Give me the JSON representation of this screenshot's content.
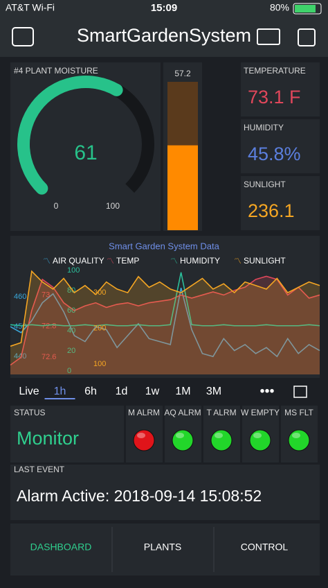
{
  "status_bar": {
    "carrier": "AT&T Wi-Fi",
    "time": "15:09",
    "battery": "80%"
  },
  "header": {
    "title": "SmartGardenSystem"
  },
  "gauge": {
    "label": "#4 PLANT MOISTURE",
    "value": 61,
    "min": 0,
    "max": 100,
    "color": "#27c28a"
  },
  "level": {
    "value": 57.2,
    "color": "#ff8a00"
  },
  "displays": [
    {
      "label": "TEMPERATURE",
      "value": "73.1 F",
      "color": "#e0475b"
    },
    {
      "label": "HUMIDITY",
      "value": "45.8%",
      "color": "#5b7fde"
    },
    {
      "label": "SUNLIGHT",
      "value": "236.1",
      "color": "#f5a623"
    }
  ],
  "chart_data": {
    "type": "line",
    "title": "Smart Garden System Data",
    "series": [
      {
        "name": "AIR QUALITY",
        "color": "#3aa7d9",
        "ylim": [
          434,
          470
        ],
        "yticks": [
          460,
          450,
          440
        ],
        "values": [
          450,
          448,
          452,
          458,
          461,
          455,
          447,
          445,
          450,
          449,
          443,
          447,
          451,
          446,
          445,
          444,
          463,
          449,
          441,
          440,
          446,
          442,
          444,
          441,
          443,
          440,
          446,
          441,
          444,
          442
        ]
      },
      {
        "name": "TEMP",
        "color": "#e0475b",
        "area": true,
        "ylim": [
          72.49,
          73.18
        ],
        "yticks": [
          73,
          72.8,
          72.6
        ],
        "values": [
          72.55,
          72.6,
          72.9,
          73.1,
          73.05,
          72.95,
          72.9,
          72.93,
          72.95,
          72.92,
          72.94,
          72.95,
          72.93,
          72.95,
          72.96,
          72.97,
          73.0,
          72.98,
          73.0,
          73.02,
          73.0,
          73.03,
          73.05,
          73.1,
          73.12,
          73.1,
          73.0,
          73.05,
          72.98,
          73.0
        ]
      },
      {
        "name": "HUMIDITY",
        "color": "#2bbf9b",
        "ylim": [
          -3.4,
          103.4
        ],
        "yticks": [
          100,
          80,
          60,
          40,
          20,
          0
        ],
        "values": [
          46,
          45,
          46,
          45,
          46,
          45,
          45,
          46,
          45,
          46,
          45,
          45,
          46,
          45,
          45,
          46,
          98,
          46,
          45,
          45,
          46,
          45,
          45,
          45,
          46,
          45,
          45,
          45,
          46,
          45
        ]
      },
      {
        "name": "SUNLIGHT",
        "color": "#f5a623",
        "area": true,
        "ylim": [
          71,
          372
        ],
        "yticks": [
          300,
          200,
          100
        ],
        "values": [
          150,
          160,
          360,
          330,
          310,
          340,
          300,
          320,
          295,
          330,
          310,
          300,
          345,
          315,
          330,
          310,
          300,
          320,
          340,
          310,
          325,
          300,
          330,
          320,
          310,
          340,
          300,
          315,
          330,
          320
        ]
      }
    ]
  },
  "periods": [
    "Live",
    "1h",
    "6h",
    "1d",
    "1w",
    "1M",
    "3M"
  ],
  "selected_period": 1,
  "status": {
    "label": "STATUS",
    "value": "Monitor"
  },
  "leds": [
    {
      "label": "M ALRM",
      "color": "#e0141a"
    },
    {
      "label": "AQ ALRM",
      "color": "#22d62a"
    },
    {
      "label": "T ALRM",
      "color": "#22d62a"
    },
    {
      "label": "W EMPTY",
      "color": "#22d62a"
    },
    {
      "label": "MS FLT",
      "color": "#22d62a"
    }
  ],
  "last_event": {
    "label": "LAST EVENT",
    "value": "Alarm Active: 2018-09-14 15:08:52"
  },
  "tabs": [
    "DASHBOARD",
    "PLANTS",
    "CONTROL"
  ],
  "selected_tab": 0
}
